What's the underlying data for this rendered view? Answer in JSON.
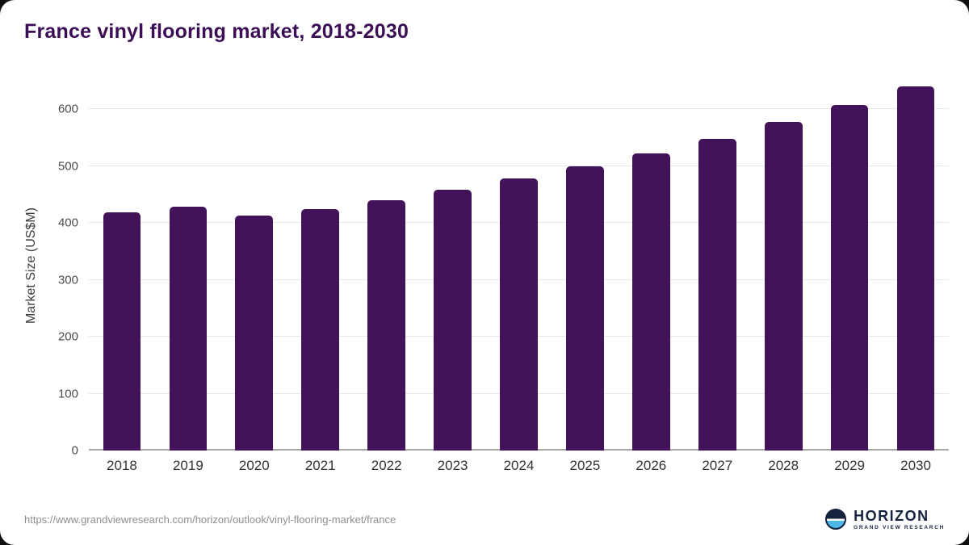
{
  "card": {
    "title": "France vinyl flooring market, 2018-2030",
    "source_url": "https://www.grandviewresearch.com/horizon/outlook/vinyl-flooring-market/france",
    "logo": {
      "name": "HORIZON",
      "subtext": "GRAND VIEW RESEARCH"
    }
  },
  "chart_data": {
    "type": "bar",
    "title": "France vinyl flooring market, 2018-2030",
    "categories": [
      "2018",
      "2019",
      "2020",
      "2021",
      "2022",
      "2023",
      "2024",
      "2025",
      "2026",
      "2027",
      "2028",
      "2029",
      "2030"
    ],
    "values": [
      418,
      428,
      413,
      425,
      440,
      458,
      478,
      500,
      523,
      548,
      577,
      607,
      640
    ],
    "xlabel": "",
    "ylabel": "Market Size (US$M)",
    "ylim": [
      0,
      650
    ],
    "yticks": [
      0,
      100,
      200,
      300,
      400,
      500,
      600
    ],
    "grid": true,
    "legend": false,
    "bar_color": "#421359"
  },
  "colors": {
    "title": "#3b0e56",
    "bar": "#421359",
    "gridline": "#e8e8e8",
    "axis": "#a8a8a8",
    "tick_label": "#333333",
    "source_text": "#8e8e8e",
    "logo_navy": "#16233e",
    "logo_blue": "#4cb8e8"
  }
}
